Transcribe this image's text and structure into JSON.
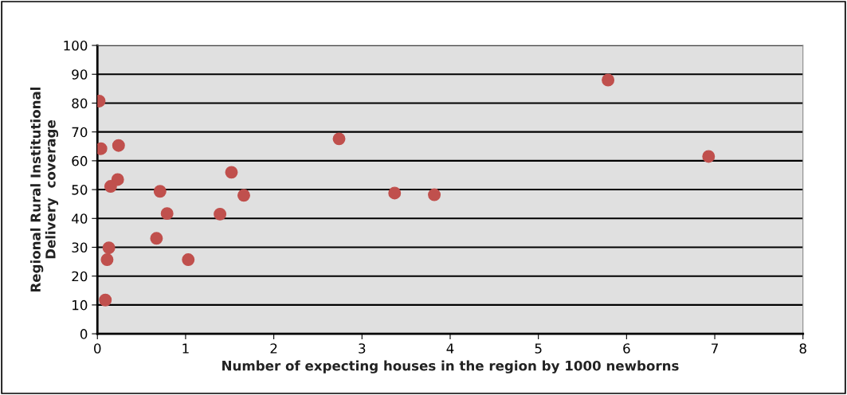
{
  "chart_data": {
    "type": "scatter",
    "xlabel": "Number of expecting houses in the region by 1000 newborns",
    "ylabel": "Regional Rural Institutional\nDelivery  coverage",
    "x": [
      0.02,
      0.04,
      0.24,
      0.23,
      0.15,
      0.13,
      0.11,
      0.09,
      0.71,
      0.79,
      0.67,
      1.03,
      1.39,
      1.52,
      1.66,
      2.74,
      3.37,
      3.82,
      5.79,
      6.93
    ],
    "series": [
      {
        "color": "#c0504d",
        "values": [
          80.7,
          64.2,
          65.3,
          53.5,
          51.1,
          29.8,
          25.7,
          11.7,
          49.4,
          41.7,
          33.1,
          25.7,
          41.5,
          56.0,
          48.0,
          67.6,
          48.8,
          48.2,
          88.0,
          61.5
        ]
      }
    ],
    "xlim": [
      0,
      8
    ],
    "xticks": [
      0,
      1,
      2,
      3,
      4,
      5,
      6,
      7,
      8
    ],
    "ylim": [
      0,
      100
    ],
    "yticks": [
      0,
      10,
      20,
      30,
      40,
      50,
      60,
      70,
      80,
      90,
      100
    ],
    "grid": "y",
    "marker": "circle",
    "legend": false
  }
}
